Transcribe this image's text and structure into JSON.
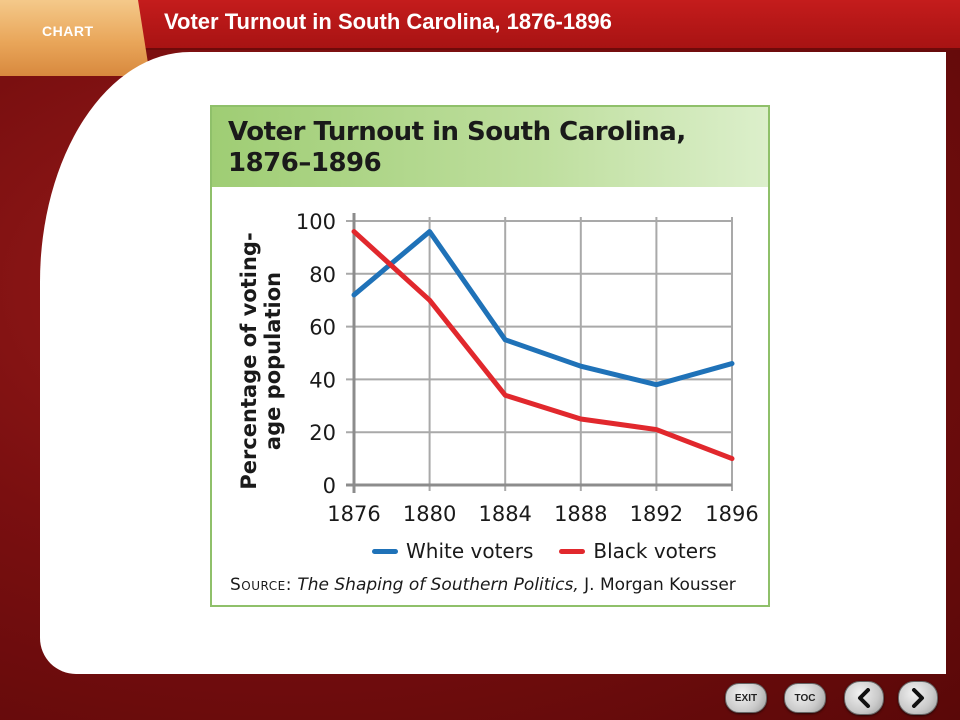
{
  "header": {
    "tab_label": "CHART",
    "title": "Voter Turnout in South Carolina, 1876-1896"
  },
  "chart_data": {
    "type": "line",
    "title": "Voter Turnout in South Carolina, 1876–1896",
    "ylabel": "Percentage of voting-age population",
    "xlabel": "",
    "x": [
      1876,
      1880,
      1884,
      1888,
      1892,
      1896
    ],
    "ylim": [
      0,
      100
    ],
    "yticks": [
      0,
      20,
      40,
      60,
      80,
      100
    ],
    "grid": true,
    "legend": "bottom",
    "series": [
      {
        "name": "White voters",
        "color": "#1f72b8",
        "values": [
          72,
          96,
          55,
          45,
          38,
          46
        ]
      },
      {
        "name": "Black voters",
        "color": "#e1282d",
        "values": [
          96,
          70,
          34,
          25,
          21,
          10
        ]
      }
    ],
    "source_label": "Source:",
    "source_title": "The Shaping of Southern Politics,",
    "source_author": "J. Morgan Kousser"
  },
  "nav": {
    "exit_label": "EXIT",
    "toc_label": "TOC"
  },
  "colors": {
    "header_red": "#c41c1c",
    "tab_orange": "#e9a65a",
    "panel_green": "#8fc06a"
  }
}
